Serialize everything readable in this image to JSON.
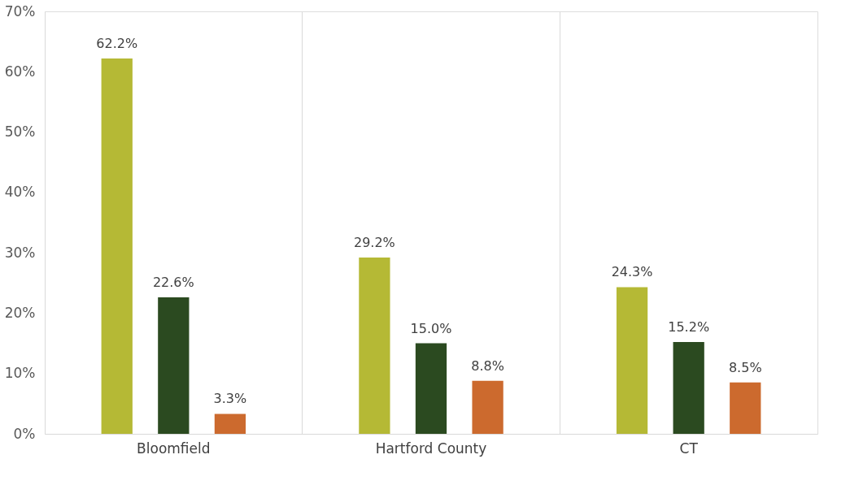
{
  "chart_data": {
    "type": "bar",
    "categories": [
      "Bloomfield",
      "Hartford County",
      "CT"
    ],
    "series": [
      {
        "color": "#b5b935",
        "values": [
          62.2,
          29.2,
          24.3
        ],
        "value_labels": [
          "62.2%",
          "29.2%",
          "24.3%"
        ]
      },
      {
        "color": "#2b4a20",
        "values": [
          22.6,
          15.0,
          15.2
        ],
        "value_labels": [
          "22.6%",
          "15.0%",
          "15.2%"
        ]
      },
      {
        "color": "#cc6a2e",
        "values": [
          3.3,
          8.8,
          8.5
        ],
        "value_labels": [
          "3.3%",
          "8.8%",
          "8.5%"
        ]
      }
    ],
    "ylim": [
      0,
      70
    ],
    "yticks": [
      {
        "value": 0,
        "label": "0%"
      },
      {
        "value": 10,
        "label": "10%"
      },
      {
        "value": 20,
        "label": "20%"
      },
      {
        "value": 30,
        "label": "30%"
      },
      {
        "value": 40,
        "label": "40%"
      },
      {
        "value": 50,
        "label": "50%"
      },
      {
        "value": 60,
        "label": "60%"
      },
      {
        "value": 70,
        "label": "70%"
      }
    ],
    "grid": "x",
    "legend": false
  }
}
